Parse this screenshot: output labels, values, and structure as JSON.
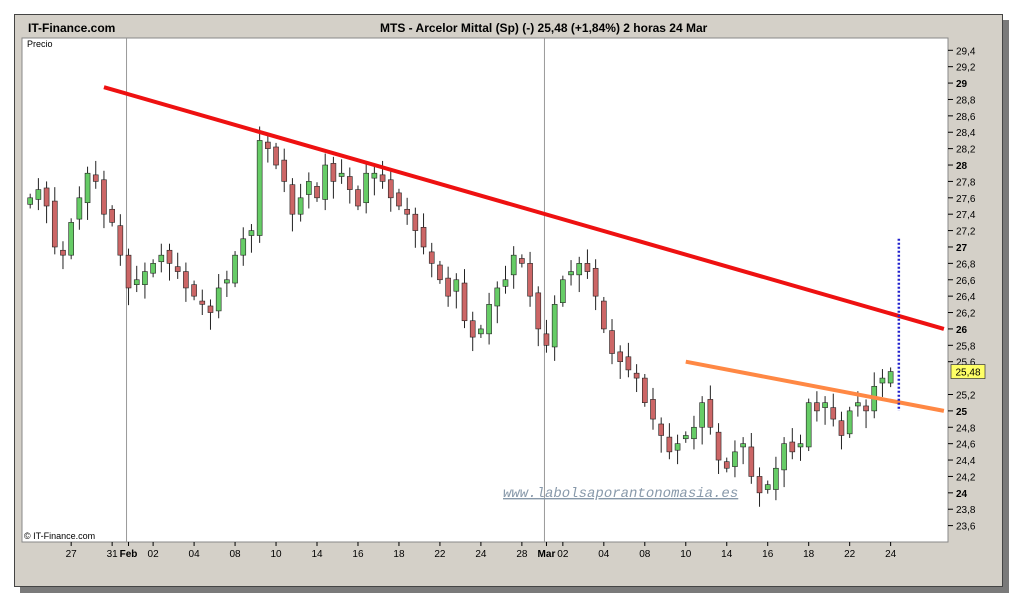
{
  "site": {
    "name": "IT-Finance.com",
    "watermark": "© IT-Finance.com",
    "url_watermark": "www.labolsaporantonomasia.es"
  },
  "header": {
    "title": "MTS - Arcelor Mittal (Sp) (-)    25,48 (+1,84%)    2 horas  24 Mar"
  },
  "colors": {
    "frame_bg": "#d4d0c8",
    "plot_bg": "#ffffff",
    "up_candle": "#66cc66",
    "down_candle": "#cc6666",
    "resistance_line": "#ee1111",
    "support_line": "#ff8844",
    "marker_line": "#2222cc",
    "price_tag": "#ffff66",
    "url_text": "#8899aa"
  },
  "chart_data": {
    "type": "candlestick",
    "title": "MTS - Arcelor Mittal (Sp) (-)    25,48 (+1,84%)    2 horas  24 Mar",
    "ylabel": "Precio",
    "ylim": [
      23.4,
      29.5
    ],
    "grid": false,
    "last_price": 25.48,
    "last_price_label": "25,48",
    "y_ticks": [
      {
        "label": "29,4",
        "value": 29.4,
        "bold": false
      },
      {
        "label": "29,2",
        "value": 29.2,
        "bold": false
      },
      {
        "label": "29",
        "value": 29.0,
        "bold": true
      },
      {
        "label": "28,8",
        "value": 28.8,
        "bold": false
      },
      {
        "label": "28,6",
        "value": 28.6,
        "bold": false
      },
      {
        "label": "28,4",
        "value": 28.4,
        "bold": false
      },
      {
        "label": "28,2",
        "value": 28.2,
        "bold": false
      },
      {
        "label": "28",
        "value": 28.0,
        "bold": true
      },
      {
        "label": "27,8",
        "value": 27.8,
        "bold": false
      },
      {
        "label": "27,6",
        "value": 27.6,
        "bold": false
      },
      {
        "label": "27,4",
        "value": 27.4,
        "bold": false
      },
      {
        "label": "27,2",
        "value": 27.2,
        "bold": false
      },
      {
        "label": "27",
        "value": 27.0,
        "bold": true
      },
      {
        "label": "26,8",
        "value": 26.8,
        "bold": false
      },
      {
        "label": "26,6",
        "value": 26.6,
        "bold": false
      },
      {
        "label": "26,4",
        "value": 26.4,
        "bold": false
      },
      {
        "label": "26,2",
        "value": 26.2,
        "bold": false
      },
      {
        "label": "26",
        "value": 26.0,
        "bold": true
      },
      {
        "label": "25,8",
        "value": 25.8,
        "bold": false
      },
      {
        "label": "25,6",
        "value": 25.6,
        "bold": false
      },
      {
        "label": "25,2",
        "value": 25.2,
        "bold": false
      },
      {
        "label": "25",
        "value": 25.0,
        "bold": true
      },
      {
        "label": "24,8",
        "value": 24.8,
        "bold": false
      },
      {
        "label": "24,6",
        "value": 24.6,
        "bold": false
      },
      {
        "label": "24,4",
        "value": 24.4,
        "bold": false
      },
      {
        "label": "24,2",
        "value": 24.2,
        "bold": false
      },
      {
        "label": "24",
        "value": 24.0,
        "bold": true
      },
      {
        "label": "23,8",
        "value": 23.8,
        "bold": false
      },
      {
        "label": "23,6",
        "value": 23.6,
        "bold": false
      }
    ],
    "x_ticks": [
      {
        "label": "27",
        "bar": 5,
        "bold": false
      },
      {
        "label": "31",
        "bar": 10,
        "bold": false
      },
      {
        "label": "Feb",
        "bar": 12,
        "bold": true
      },
      {
        "label": "02",
        "bar": 15,
        "bold": false
      },
      {
        "label": "04",
        "bar": 20,
        "bold": false
      },
      {
        "label": "08",
        "bar": 25,
        "bold": false
      },
      {
        "label": "10",
        "bar": 30,
        "bold": false
      },
      {
        "label": "14",
        "bar": 35,
        "bold": false
      },
      {
        "label": "16",
        "bar": 40,
        "bold": false
      },
      {
        "label": "18",
        "bar": 45,
        "bold": false
      },
      {
        "label": "22",
        "bar": 50,
        "bold": false
      },
      {
        "label": "24",
        "bar": 55,
        "bold": false
      },
      {
        "label": "28",
        "bar": 60,
        "bold": false
      },
      {
        "label": "Mar",
        "bar": 63,
        "bold": true
      },
      {
        "label": "02",
        "bar": 65,
        "bold": false
      },
      {
        "label": "04",
        "bar": 70,
        "bold": false
      },
      {
        "label": "08",
        "bar": 75,
        "bold": false
      },
      {
        "label": "10",
        "bar": 80,
        "bold": false
      },
      {
        "label": "14",
        "bar": 85,
        "bold": false
      },
      {
        "label": "16",
        "bar": 90,
        "bold": false
      },
      {
        "label": "18",
        "bar": 95,
        "bold": false
      },
      {
        "label": "22",
        "bar": 100,
        "bold": false
      },
      {
        "label": "24",
        "bar": 105,
        "bold": false
      }
    ],
    "month_separators": [
      12,
      63
    ],
    "x_range": [
      -1,
      112
    ],
    "closes": [
      27.6,
      27.7,
      27.5,
      27.0,
      26.9,
      27.3,
      27.6,
      27.9,
      27.8,
      27.4,
      27.3,
      26.9,
      26.5,
      26.6,
      26.7,
      26.8,
      26.9,
      26.8,
      26.7,
      26.5,
      26.4,
      26.3,
      26.2,
      26.5,
      26.6,
      26.9,
      27.1,
      27.2,
      28.3,
      28.2,
      28.0,
      27.8,
      27.4,
      27.6,
      27.8,
      27.6,
      28.0,
      27.8,
      27.9,
      27.7,
      27.5,
      27.9,
      27.9,
      27.8,
      27.6,
      27.5,
      27.4,
      27.2,
      27.0,
      26.8,
      26.6,
      26.4,
      26.6,
      26.1,
      25.9,
      26.0,
      26.3,
      26.5,
      26.6,
      26.9,
      26.8,
      26.4,
      26.0,
      25.8,
      26.3,
      26.6,
      26.7,
      26.8,
      26.7,
      26.4,
      26.0,
      25.7,
      25.6,
      25.5,
      25.4,
      25.1,
      24.9,
      24.7,
      24.5,
      24.6,
      24.7,
      24.8,
      25.1,
      24.8,
      24.4,
      24.3,
      24.5,
      24.6,
      24.2,
      24.0,
      24.1,
      24.3,
      24.6,
      24.5,
      24.6,
      25.1,
      25.0,
      25.1,
      24.9,
      24.7,
      25.0,
      25.1,
      25.0,
      25.3,
      25.4,
      25.48
    ],
    "resistance_line": {
      "start": {
        "bar": 9,
        "value": 28.95
      },
      "end": {
        "bar": 111.5,
        "value": 26.0
      }
    },
    "support_line": {
      "start": {
        "bar": 80,
        "value": 25.6
      },
      "end": {
        "bar": 111.5,
        "value": 25.0
      }
    },
    "marker": {
      "bar": 106,
      "from": 27.1,
      "to": 25.0
    }
  }
}
